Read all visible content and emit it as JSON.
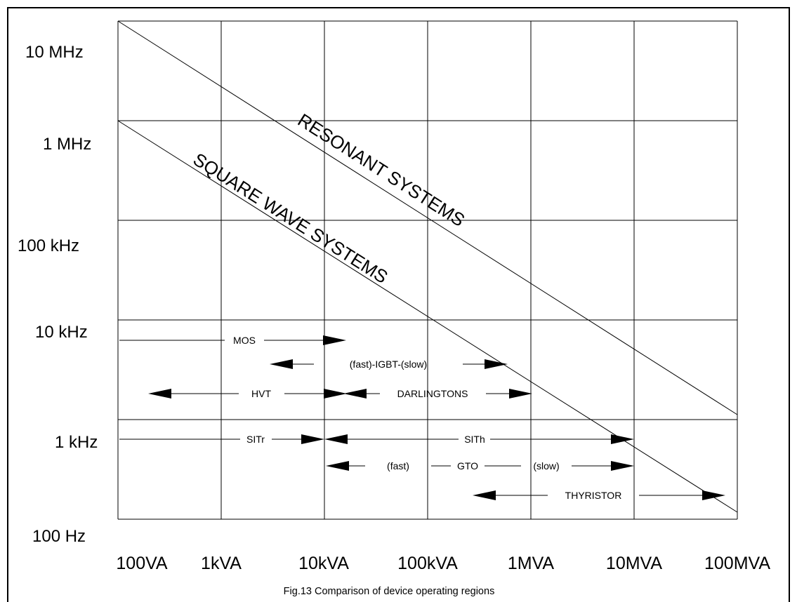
{
  "chart_data": {
    "type": "diagram",
    "title": "",
    "caption": "Fig.13  Comparison of device operating regions",
    "x_ticks": [
      "100VA",
      "1kVA",
      "10kVA",
      "100kVA",
      "1MVA",
      "10MVA",
      "100MVA"
    ],
    "y_ticks": [
      "10 MHz",
      "1 MHz",
      "100 kHz",
      "10 kHz",
      "1 kHz",
      "100 Hz"
    ],
    "diagonals": [
      {
        "label": "RESONANT SYSTEMS"
      },
      {
        "label": "SQUARE WAVE SYSTEMS"
      }
    ],
    "devices": [
      {
        "label": "MOS"
      },
      {
        "label": "(fast)-IGBT-(slow)"
      },
      {
        "label": "HVT"
      },
      {
        "label": "DARLINGTONS"
      },
      {
        "label": "SITr"
      },
      {
        "label": "SITh"
      },
      {
        "label": "(fast)"
      },
      {
        "label": "GTO"
      },
      {
        "label": "(slow)"
      },
      {
        "label": "THYRISTOR"
      }
    ]
  }
}
